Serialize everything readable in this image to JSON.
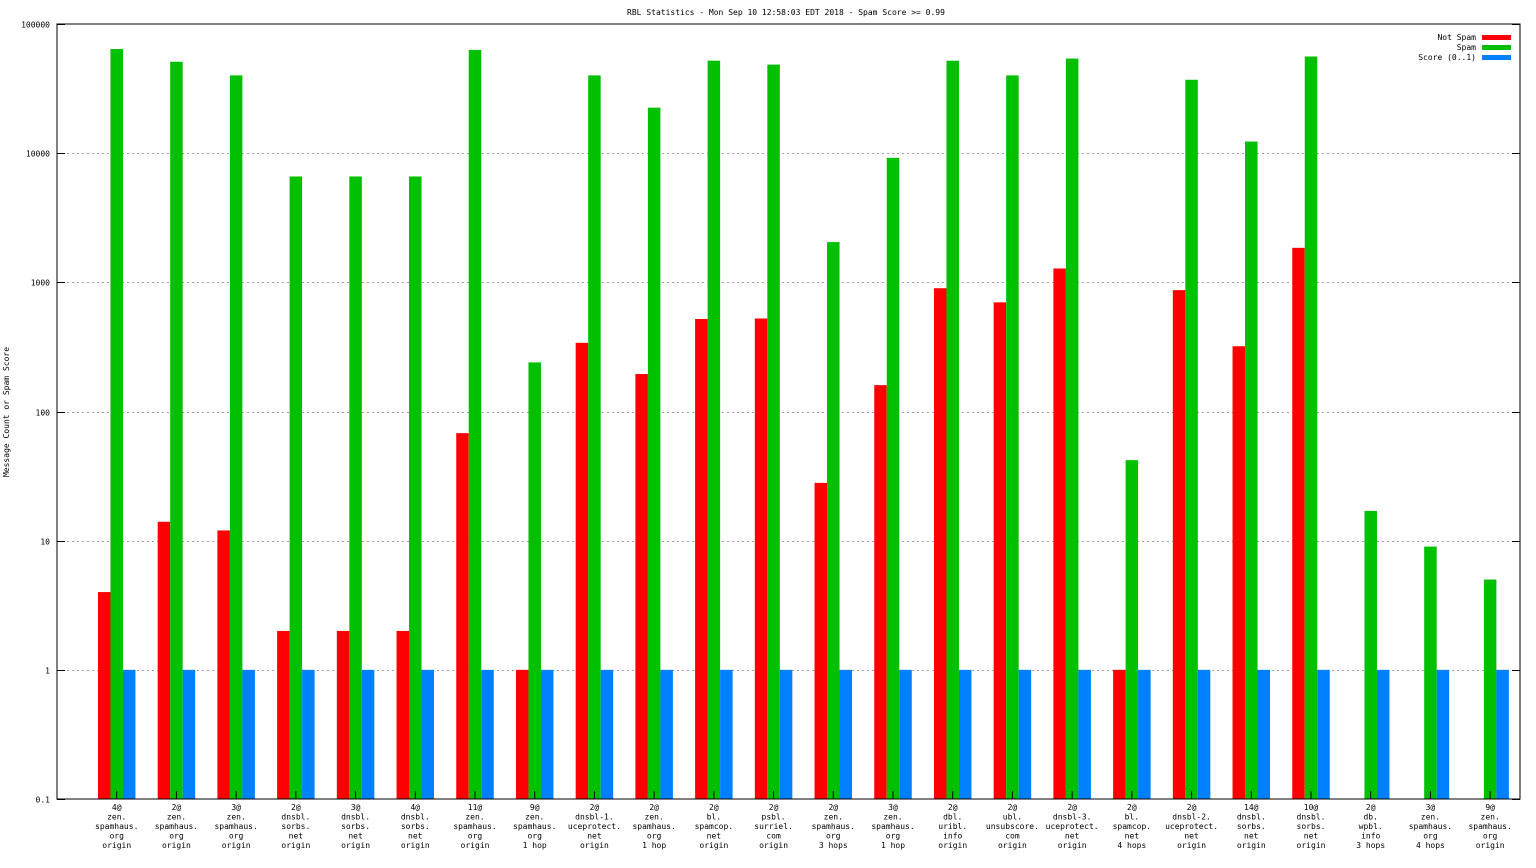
{
  "chart_data": {
    "type": "bar",
    "title": "RBL Statistics - Mon Sep 10 12:58:03 EDT 2018 - Spam Score >= 0.99",
    "ylabel": "Message Count or Spam Score",
    "xlabel": "",
    "yscale": "log",
    "ylim": [
      0.1,
      100000
    ],
    "yticks": [
      "0.1",
      "1",
      "10",
      "100",
      "1000",
      "10000",
      "100000"
    ],
    "grid": true,
    "legend_position": "top-right",
    "categories": [
      [
        "4@",
        "zen.",
        "spamhaus.",
        "org",
        "origin"
      ],
      [
        "2@",
        "zen.",
        "spamhaus.",
        "org",
        "origin"
      ],
      [
        "3@",
        "zen.",
        "spamhaus.",
        "org",
        "origin"
      ],
      [
        "2@",
        "dnsbl.",
        "sorbs.",
        "net",
        "origin"
      ],
      [
        "3@",
        "dnsbl.",
        "sorbs.",
        "net",
        "origin"
      ],
      [
        "4@",
        "dnsbl.",
        "sorbs.",
        "net",
        "origin"
      ],
      [
        "11@",
        "zen.",
        "spamhaus.",
        "org",
        "origin"
      ],
      [
        "9@",
        "zen.",
        "spamhaus.",
        "org",
        "1 hop"
      ],
      [
        "2@",
        "dnsbl-1.",
        "uceprotect.",
        "net",
        "origin"
      ],
      [
        "2@",
        "zen.",
        "spamhaus.",
        "org",
        "1 hop"
      ],
      [
        "2@",
        "bl.",
        "spamcop.",
        "net",
        "origin"
      ],
      [
        "2@",
        "psbl.",
        "surriel.",
        "com",
        "origin"
      ],
      [
        "2@",
        "zen.",
        "spamhaus.",
        "org",
        "3 hops"
      ],
      [
        "3@",
        "zen.",
        "spamhaus.",
        "org",
        "1 hop"
      ],
      [
        "2@",
        "dbl.",
        "uribl.",
        "info",
        "origin"
      ],
      [
        "2@",
        "ubl.",
        "unsubscore.",
        "com",
        "origin"
      ],
      [
        "2@",
        "dnsbl-3.",
        "uceprotect.",
        "net",
        "origin"
      ],
      [
        "2@",
        "bl.",
        "spamcop.",
        "net",
        "4 hops"
      ],
      [
        "2@",
        "dnsbl-2.",
        "uceprotect.",
        "net",
        "origin"
      ],
      [
        "14@",
        "dnsbl.",
        "sorbs.",
        "net",
        "origin"
      ],
      [
        "10@",
        "dnsbl.",
        "sorbs.",
        "net",
        "origin"
      ],
      [
        "2@",
        "db.",
        "wpbl.",
        "info",
        "3 hops"
      ],
      [
        "3@",
        "zen.",
        "spamhaus.",
        "org",
        "4 hops"
      ],
      [
        "9@",
        "zen.",
        "spamhaus.",
        "org",
        "origin"
      ]
    ],
    "series": [
      {
        "name": "Not Spam",
        "color": "#ff0000",
        "values": [
          4,
          14,
          12,
          2,
          2,
          2,
          68,
          1,
          340,
          195,
          520,
          525,
          28,
          160,
          900,
          700,
          1280,
          1,
          870,
          320,
          1850,
          null,
          null,
          null
        ]
      },
      {
        "name": "Spam",
        "color": "#00c000",
        "values": [
          64000,
          51000,
          40000,
          6600,
          6600,
          6600,
          63000,
          240,
          40000,
          22500,
          52000,
          48500,
          2050,
          9200,
          52000,
          40000,
          54000,
          42,
          37000,
          12300,
          56000,
          17,
          9,
          5
        ]
      },
      {
        "name": "Score (0..1)",
        "color": "#0080ff",
        "values": [
          1,
          1,
          1,
          1,
          1,
          1,
          1,
          1,
          1,
          1,
          1,
          1,
          1,
          1,
          1,
          1,
          1,
          1,
          1,
          1,
          1,
          1,
          1,
          1
        ]
      }
    ]
  }
}
